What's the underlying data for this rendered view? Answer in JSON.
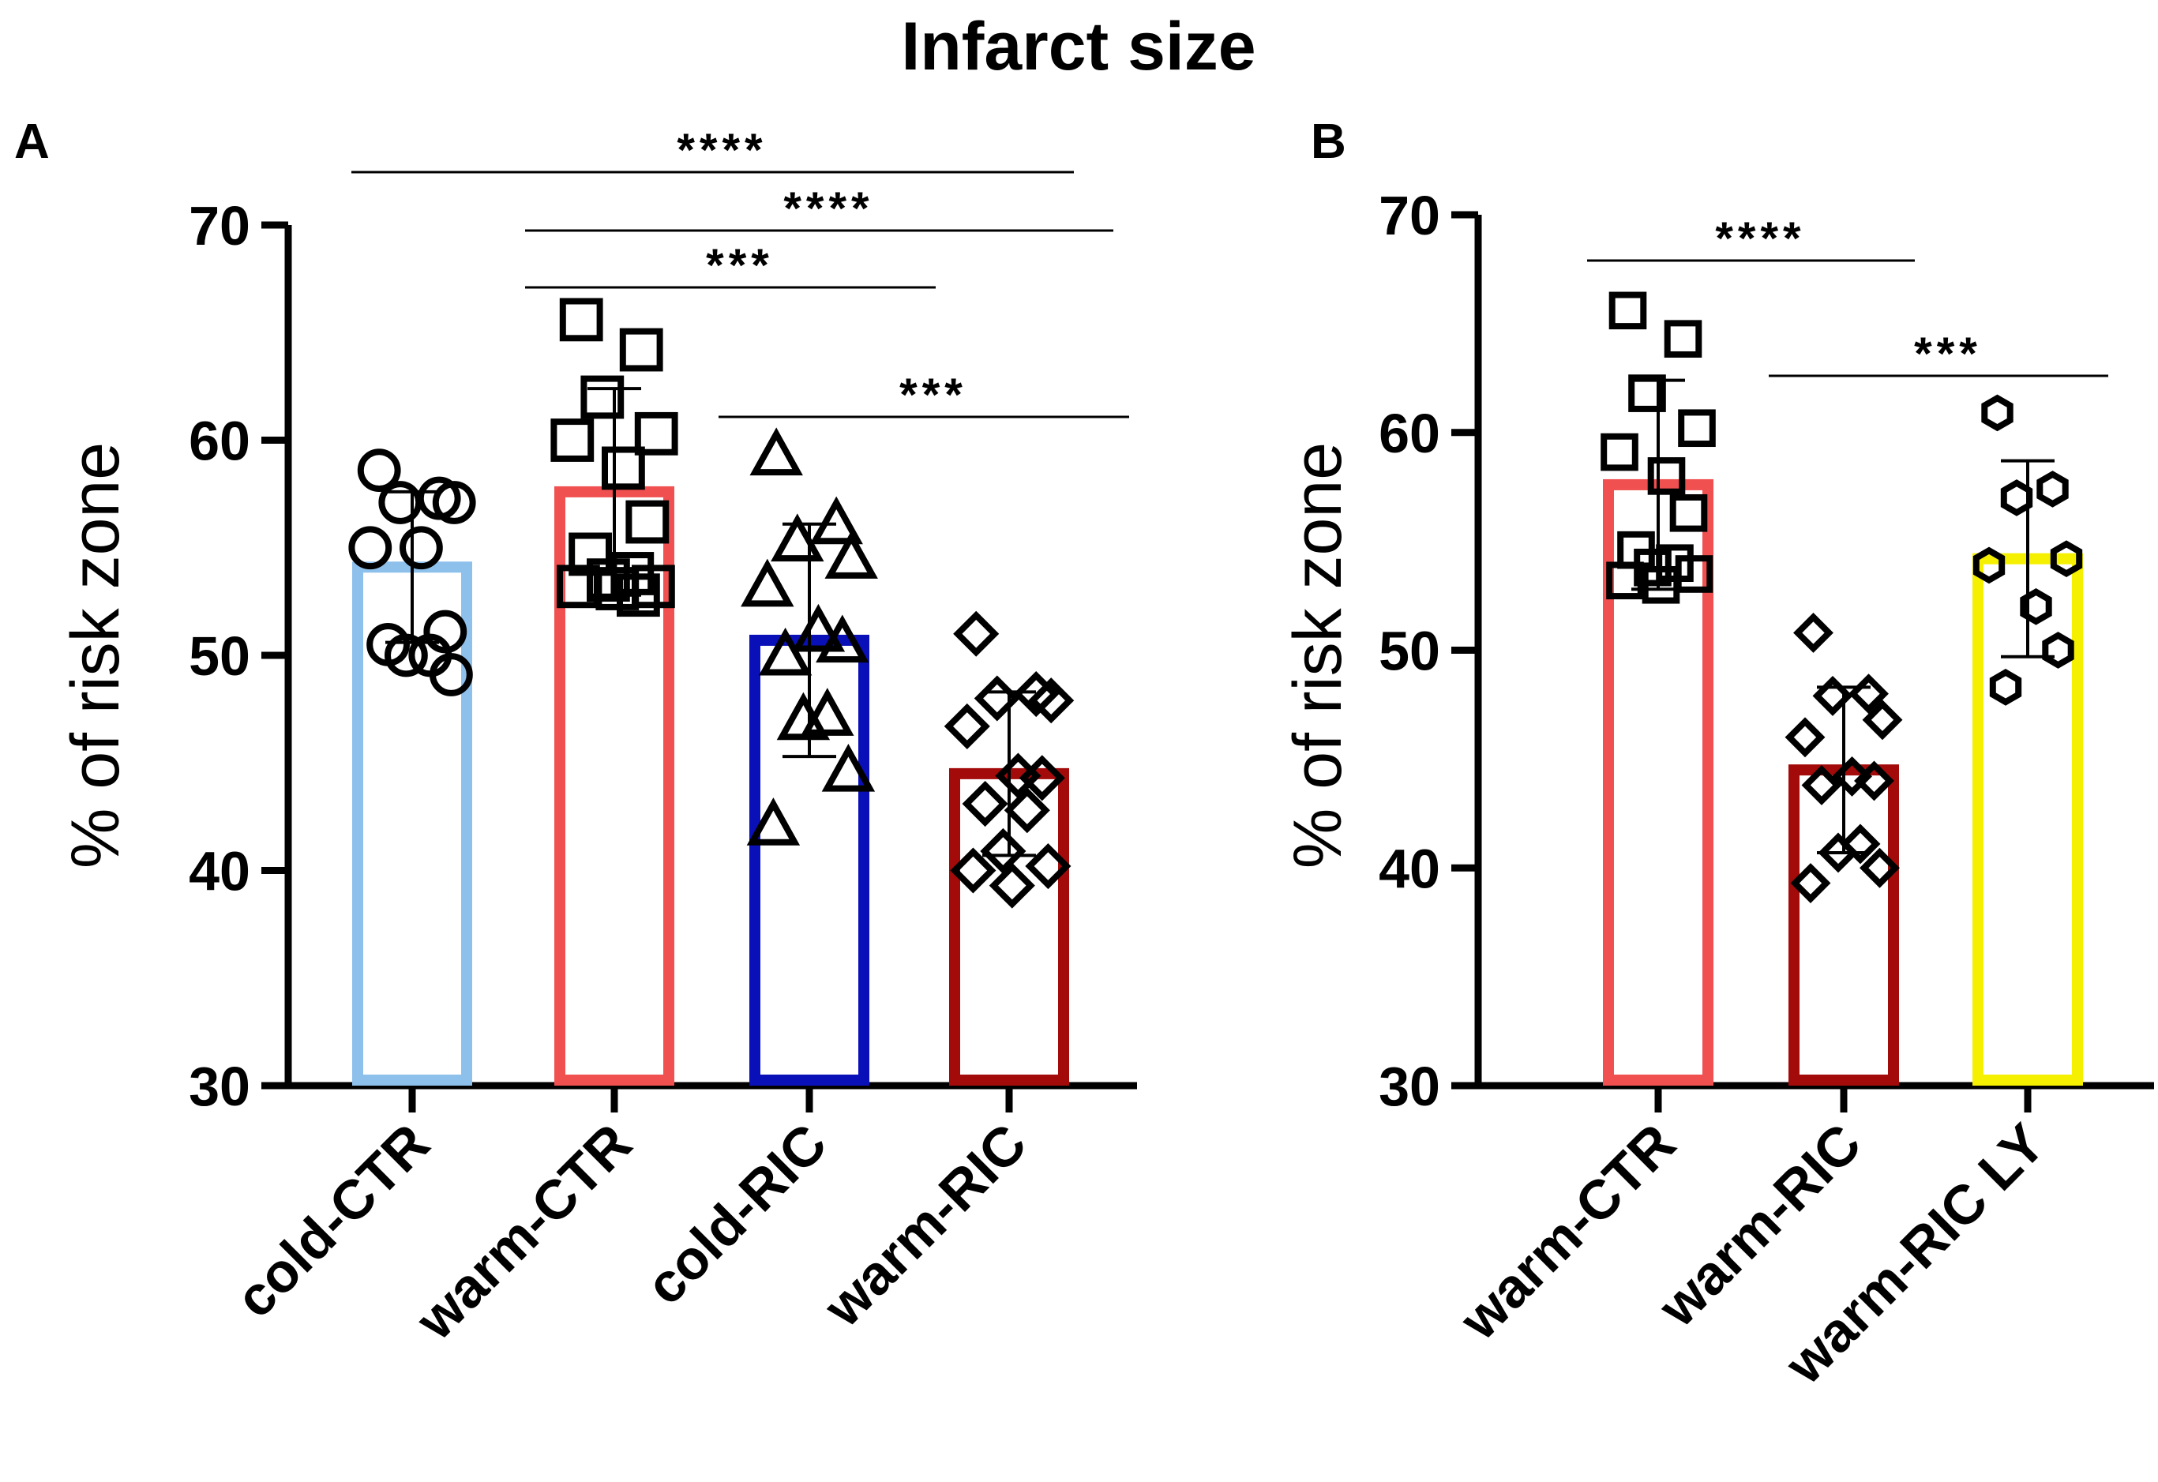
{
  "title": "Infarct size",
  "colors": {
    "cold_ctr": "#8ec0ec",
    "warm_ctr": "#f05050",
    "cold_ric": "#0a10b8",
    "warm_ric": "#a30b0b",
    "warm_ric_ly": "#f5f000",
    "ink": "#000000"
  },
  "chart_data": [
    {
      "panel": "A",
      "type": "bar",
      "ylabel": "% of risk zone",
      "ylim": [
        30,
        70
      ],
      "yticks": [
        30,
        40,
        50,
        60,
        70
      ],
      "error_bars": "mean ± SD",
      "categories": [
        "cold-CTR",
        "warm-CTR",
        "cold-RIC",
        "warm-RIC"
      ],
      "values": [
        54.1,
        57.6,
        50.7,
        44.5
      ],
      "sd": [
        3.5,
        4.8,
        5.4,
        3.8
      ],
      "bar_colors": [
        "cold_ctr",
        "warm_ctr",
        "cold_ric",
        "warm_ric"
      ],
      "markers": [
        "circle",
        "square",
        "triangle",
        "diamond"
      ],
      "points": [
        [
          58.6,
          57.3,
          57.1,
          57.1,
          55.0,
          55.0,
          51.1,
          50.5,
          50.0,
          50.0,
          49.1
        ],
        [
          65.6,
          64.2,
          62.0,
          60.3,
          60.0,
          58.7,
          56.2,
          54.7,
          53.8,
          53.5,
          53.2,
          53.2,
          53.1,
          52.8
        ],
        [
          59.3,
          56.1,
          55.3,
          54.5,
          53.2,
          51.1,
          50.6,
          50.0,
          47.2,
          47.0,
          44.6,
          42.1
        ],
        [
          51.0,
          48.2,
          48.0,
          47.9,
          46.7,
          44.4,
          44.3,
          43.1,
          42.8,
          40.9,
          40.2,
          40.0,
          39.3
        ]
      ],
      "significance": [
        {
          "from": "cold-CTR",
          "to": "warm-RIC",
          "label": "****"
        },
        {
          "from": "warm-CTR",
          "to": "warm-RIC",
          "label": "****"
        },
        {
          "from": "warm-CTR",
          "to": "cold-RIC",
          "label": "***"
        },
        {
          "from": "cold-RIC",
          "to": "warm-RIC",
          "label": "***"
        }
      ]
    },
    {
      "panel": "B",
      "type": "bar",
      "ylabel": "% of risk zone",
      "ylim": [
        30,
        70
      ],
      "yticks": [
        30,
        40,
        50,
        60,
        70
      ],
      "error_bars": "mean ± SD",
      "categories": [
        "warm-CTR",
        "warm-RIC",
        "warm-RIC LY"
      ],
      "values": [
        57.6,
        44.5,
        54.2
      ],
      "sd": [
        4.8,
        3.8,
        4.5
      ],
      "bar_colors": [
        "warm_ctr",
        "warm_ric",
        "warm_ric_ly"
      ],
      "markers": [
        "square",
        "diamond",
        "hexagon"
      ],
      "points": [
        [
          65.6,
          64.3,
          61.8,
          60.2,
          59.1,
          58.0,
          56.3,
          54.6,
          54.0,
          53.8,
          53.5,
          53.2,
          53.0
        ],
        [
          50.8,
          48.0,
          47.9,
          46.8,
          46.0,
          44.2,
          44.0,
          43.8,
          41.1,
          40.7,
          40.0,
          39.3
        ],
        [
          60.9,
          57.4,
          57.0,
          54.2,
          53.9,
          52.0,
          50.0,
          48.3
        ]
      ],
      "significance": [
        {
          "from": "warm-CTR",
          "to": "warm-RIC",
          "label": "****"
        },
        {
          "from": "warm-RIC",
          "to": "warm-RIC LY",
          "label": "***"
        }
      ]
    }
  ]
}
